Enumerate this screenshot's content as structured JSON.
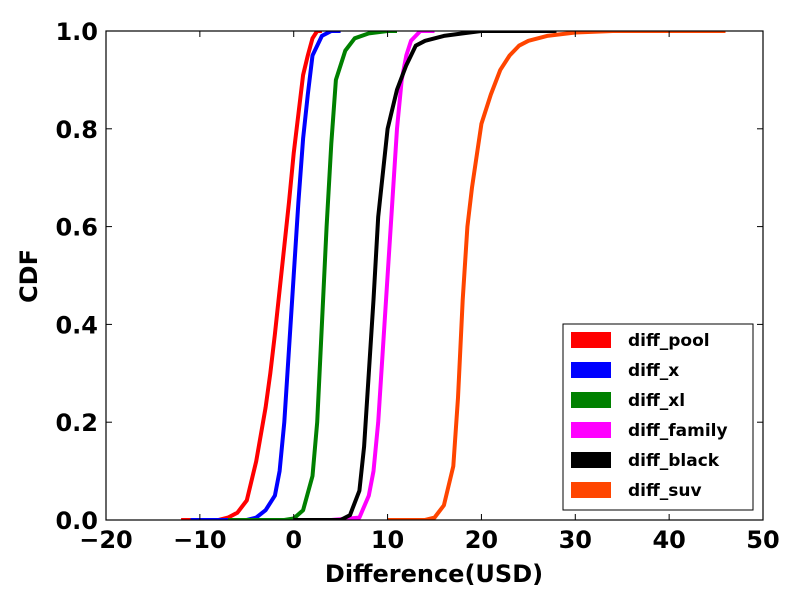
{
  "chart_data": {
    "type": "line",
    "title": "",
    "xlabel": "Difference(USD)",
    "ylabel": "CDF",
    "xlim": [
      -20,
      50
    ],
    "ylim": [
      0.0,
      1.0
    ],
    "xticks": [
      -20,
      -10,
      0,
      10,
      20,
      30,
      40,
      50
    ],
    "xtick_labels": [
      "−20",
      "−10",
      "0",
      "10",
      "20",
      "30",
      "40",
      "50"
    ],
    "yticks": [
      0.0,
      0.2,
      0.4,
      0.6,
      0.8,
      1.0
    ],
    "ytick_labels": [
      "0.0",
      "0.2",
      "0.4",
      "0.6",
      "0.8",
      "1.0"
    ],
    "grid": false,
    "legend_position": "bottom-right",
    "series": [
      {
        "name": "diff_pool",
        "color": "#ff0000",
        "points": [
          [
            -12,
            0.0
          ],
          [
            -8,
            0.0
          ],
          [
            -7,
            0.005
          ],
          [
            -6,
            0.015
          ],
          [
            -5,
            0.04
          ],
          [
            -4,
            0.12
          ],
          [
            -3,
            0.23
          ],
          [
            -2.5,
            0.3
          ],
          [
            -2,
            0.38
          ],
          [
            -1.5,
            0.47
          ],
          [
            -1,
            0.56
          ],
          [
            -0.5,
            0.65
          ],
          [
            0,
            0.75
          ],
          [
            0.5,
            0.83
          ],
          [
            1,
            0.91
          ],
          [
            1.5,
            0.95
          ],
          [
            2,
            0.985
          ],
          [
            2.5,
            1.0
          ],
          [
            3,
            1.0
          ]
        ]
      },
      {
        "name": "diff_x",
        "color": "#0000ff",
        "points": [
          [
            -11,
            0.0
          ],
          [
            -5,
            0.0
          ],
          [
            -4,
            0.005
          ],
          [
            -3,
            0.02
          ],
          [
            -2,
            0.05
          ],
          [
            -1.5,
            0.1
          ],
          [
            -1,
            0.2
          ],
          [
            -0.5,
            0.35
          ],
          [
            0,
            0.5
          ],
          [
            0.5,
            0.65
          ],
          [
            1,
            0.78
          ],
          [
            1.5,
            0.87
          ],
          [
            2,
            0.95
          ],
          [
            3,
            0.99
          ],
          [
            4,
            1.0
          ],
          [
            5,
            1.0
          ]
        ]
      },
      {
        "name": "diff_xl",
        "color": "#008000",
        "points": [
          [
            -7,
            0.0
          ],
          [
            -1,
            0.0
          ],
          [
            0,
            0.003
          ],
          [
            1,
            0.02
          ],
          [
            2,
            0.09
          ],
          [
            2.5,
            0.2
          ],
          [
            3,
            0.4
          ],
          [
            3.5,
            0.6
          ],
          [
            4,
            0.77
          ],
          [
            4.5,
            0.9
          ],
          [
            5.5,
            0.96
          ],
          [
            6.5,
            0.985
          ],
          [
            8,
            0.995
          ],
          [
            10,
            1.0
          ],
          [
            11,
            1.0
          ]
        ]
      },
      {
        "name": "diff_family",
        "color": "#ff00ff",
        "points": [
          [
            4,
            0.0
          ],
          [
            7,
            0.005
          ],
          [
            8,
            0.05
          ],
          [
            8.5,
            0.1
          ],
          [
            9,
            0.2
          ],
          [
            9.5,
            0.35
          ],
          [
            10,
            0.5
          ],
          [
            10.5,
            0.65
          ],
          [
            11,
            0.8
          ],
          [
            11.5,
            0.9
          ],
          [
            12,
            0.95
          ],
          [
            12.5,
            0.98
          ],
          [
            13.5,
            1.0
          ],
          [
            15,
            1.0
          ]
        ]
      },
      {
        "name": "diff_black",
        "color": "#000000",
        "points": [
          [
            0,
            0.0
          ],
          [
            5,
            0.0
          ],
          [
            6,
            0.01
          ],
          [
            7,
            0.06
          ],
          [
            7.5,
            0.15
          ],
          [
            8,
            0.3
          ],
          [
            8.5,
            0.45
          ],
          [
            9,
            0.62
          ],
          [
            10,
            0.8
          ],
          [
            11,
            0.88
          ],
          [
            12,
            0.93
          ],
          [
            13,
            0.97
          ],
          [
            14,
            0.98
          ],
          [
            16,
            0.99
          ],
          [
            18,
            0.995
          ],
          [
            20,
            1.0
          ],
          [
            28,
            1.0
          ]
        ]
      },
      {
        "name": "diff_suv",
        "color": "#ff4500",
        "points": [
          [
            10,
            0.0
          ],
          [
            14,
            0.0
          ],
          [
            15,
            0.005
          ],
          [
            16,
            0.03
          ],
          [
            17,
            0.11
          ],
          [
            17.5,
            0.25
          ],
          [
            18,
            0.45
          ],
          [
            18.5,
            0.6
          ],
          [
            19,
            0.68
          ],
          [
            20,
            0.81
          ],
          [
            21,
            0.87
          ],
          [
            22,
            0.92
          ],
          [
            23,
            0.95
          ],
          [
            24,
            0.97
          ],
          [
            25,
            0.98
          ],
          [
            27,
            0.99
          ],
          [
            30,
            0.997
          ],
          [
            34,
            1.0
          ],
          [
            46,
            1.0
          ]
        ]
      }
    ]
  }
}
